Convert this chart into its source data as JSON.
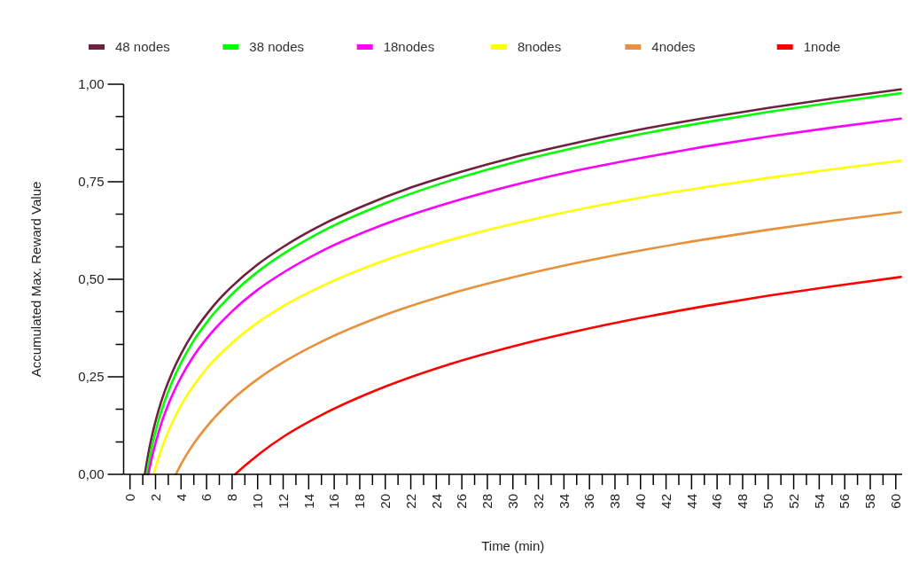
{
  "chart_data": {
    "type": "line",
    "xlabel": "Time (min)",
    "ylabel": "Accumulated Max. Reward Value",
    "legend": "top",
    "grid": false,
    "marker": "none",
    "line_style": "solid",
    "xlim": [
      -0.5,
      60.5
    ],
    "ylim": [
      0,
      1
    ],
    "yticks": [
      {
        "value": 0,
        "label": "0,00"
      },
      {
        "value": 0.083,
        "label": null
      },
      {
        "value": 0.167,
        "label": null
      },
      {
        "value": 0.25,
        "label": "0,25"
      },
      {
        "value": 0.333,
        "label": null
      },
      {
        "value": 0.417,
        "label": null
      },
      {
        "value": 0.5,
        "label": "0,50"
      },
      {
        "value": 0.583,
        "label": null
      },
      {
        "value": 0.667,
        "label": null
      },
      {
        "value": 0.75,
        "label": "0,75"
      },
      {
        "value": 0.833,
        "label": null
      },
      {
        "value": 0.917,
        "label": null
      },
      {
        "value": 1,
        "label": "1,00"
      }
    ],
    "xticks": [
      0,
      {
        "value": 1,
        "label": null
      },
      2,
      {
        "value": 3,
        "label": null
      },
      4,
      {
        "value": 5,
        "label": null
      },
      6,
      {
        "value": 7,
        "label": null
      },
      8,
      {
        "value": 9,
        "label": null
      },
      10,
      {
        "value": 11,
        "label": null
      },
      12,
      {
        "value": 13,
        "label": null
      },
      14,
      {
        "value": 15,
        "label": null
      },
      16,
      {
        "value": 17,
        "label": null
      },
      18,
      {
        "value": 19,
        "label": null
      },
      20,
      {
        "value": 21,
        "label": null
      },
      22,
      {
        "value": 23,
        "label": null
      },
      24,
      {
        "value": 25,
        "label": null
      },
      26,
      {
        "value": 27,
        "label": null
      },
      28,
      {
        "value": 29,
        "label": null
      },
      30,
      {
        "value": 31,
        "label": null
      },
      32,
      {
        "value": 33,
        "label": null
      },
      34,
      {
        "value": 35,
        "label": null
      },
      36,
      {
        "value": 37,
        "label": null
      },
      38,
      {
        "value": 39,
        "label": null
      },
      40,
      {
        "value": 41,
        "label": null
      },
      42,
      {
        "value": 43,
        "label": null
      },
      44,
      {
        "value": 45,
        "label": null
      },
      46,
      {
        "value": 47,
        "label": null
      },
      48,
      {
        "value": 49,
        "label": null
      },
      50,
      {
        "value": 51,
        "label": null
      },
      52,
      {
        "value": 53,
        "label": null
      },
      54,
      {
        "value": 55,
        "label": null
      },
      56,
      {
        "value": 57,
        "label": null
      },
      58,
      {
        "value": 59,
        "label": null
      },
      60
    ],
    "series": [
      {
        "name": "48 nodes",
        "color": "#722040",
        "x": [
          1.16,
          1.3,
          1.5,
          1.8,
          2.2,
          2.7,
          3.3,
          4,
          5,
          6,
          7,
          8,
          10,
          12,
          15,
          18,
          22,
          26,
          30,
          35,
          40,
          45,
          50,
          55,
          60.4
        ],
        "values": [
          0,
          0.028,
          0.064,
          0.11,
          0.16,
          0.211,
          0.261,
          0.309,
          0.365,
          0.41,
          0.449,
          0.482,
          0.538,
          0.583,
          0.639,
          0.684,
          0.735,
          0.776,
          0.812,
          0.85,
          0.884,
          0.913,
          0.939,
          0.963,
          0.987
        ]
      },
      {
        "name": "38 nodes",
        "color": "#00ff00",
        "x": [
          1.3,
          1.5,
          1.8,
          2.2,
          2.7,
          3.3,
          4,
          5,
          6,
          8,
          10,
          12,
          15,
          20,
          25,
          30,
          35,
          40,
          45,
          50,
          55,
          60.4
        ],
        "values": [
          0,
          0.036,
          0.083,
          0.134,
          0.186,
          0.237,
          0.286,
          0.343,
          0.389,
          0.462,
          0.519,
          0.565,
          0.622,
          0.695,
          0.752,
          0.799,
          0.838,
          0.872,
          0.902,
          0.929,
          0.953,
          0.977
        ]
      },
      {
        "name": "18nodes",
        "color": "#ff00ff",
        "x": [
          1.44,
          1.7,
          2,
          2.5,
          3,
          4,
          5,
          6,
          8,
          10,
          12,
          15,
          20,
          25,
          30,
          35,
          40,
          45,
          50,
          55,
          60.4
        ],
        "values": [
          0,
          0.041,
          0.08,
          0.135,
          0.179,
          0.249,
          0.304,
          0.348,
          0.418,
          0.473,
          0.517,
          0.572,
          0.642,
          0.696,
          0.741,
          0.779,
          0.811,
          0.84,
          0.866,
          0.889,
          0.912
        ]
      },
      {
        "name": "8nodes",
        "color": "#ffff00",
        "x": [
          1.86,
          2.1,
          2.5,
          3,
          4,
          5,
          6,
          8,
          10,
          12,
          15,
          20,
          25,
          30,
          35,
          40,
          45,
          50,
          55,
          60.4
        ],
        "values": [
          0,
          0.028,
          0.068,
          0.11,
          0.177,
          0.228,
          0.271,
          0.337,
          0.389,
          0.431,
          0.482,
          0.549,
          0.6,
          0.642,
          0.678,
          0.709,
          0.736,
          0.76,
          0.782,
          0.804
        ]
      },
      {
        "name": "4nodes",
        "color": "#e8913a",
        "x": [
          3.59,
          4,
          5,
          6,
          8,
          10,
          12,
          15,
          20,
          25,
          30,
          35,
          40,
          45,
          50,
          55,
          60.4
        ],
        "values": [
          0,
          0.026,
          0.079,
          0.122,
          0.191,
          0.244,
          0.287,
          0.34,
          0.409,
          0.462,
          0.505,
          0.542,
          0.574,
          0.602,
          0.627,
          0.65,
          0.672
        ]
      },
      {
        "name": "1node",
        "color": "#ff0000",
        "x": [
          8.24,
          9,
          10,
          12,
          15,
          20,
          25,
          30,
          35,
          40,
          45,
          50,
          55,
          60.4
        ],
        "values": [
          0,
          0.022,
          0.049,
          0.096,
          0.152,
          0.225,
          0.282,
          0.328,
          0.367,
          0.401,
          0.431,
          0.458,
          0.482,
          0.506
        ]
      }
    ]
  }
}
